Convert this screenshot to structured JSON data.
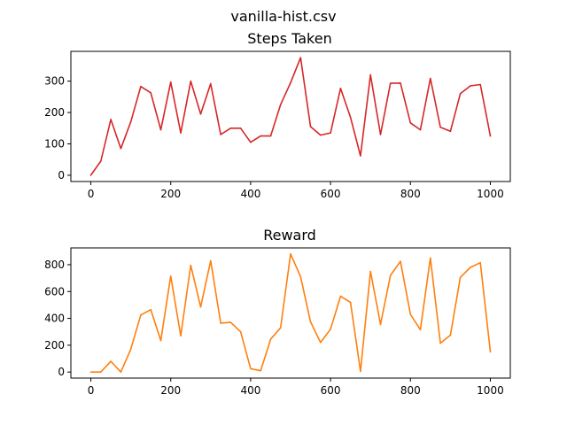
{
  "figure": {
    "suptitle": "vanilla-hist.csv"
  },
  "chart_data": [
    {
      "type": "line",
      "title": "Steps Taken",
      "xlabel": "",
      "ylabel": "",
      "color": "#d62728",
      "xlim": [
        -50,
        1050
      ],
      "ylim": [
        -20,
        395
      ],
      "xticks": [
        0,
        200,
        400,
        600,
        800,
        1000
      ],
      "yticks": [
        0,
        100,
        200,
        300
      ],
      "grid": false,
      "x": [
        0,
        25,
        50,
        75,
        100,
        125,
        150,
        175,
        200,
        225,
        250,
        275,
        300,
        325,
        350,
        375,
        400,
        425,
        450,
        475,
        500,
        525,
        550,
        575,
        600,
        625,
        650,
        675,
        700,
        725,
        750,
        775,
        800,
        825,
        850,
        875,
        900,
        925,
        950,
        975,
        1000
      ],
      "values": [
        0,
        45,
        178,
        85,
        170,
        283,
        263,
        145,
        297,
        135,
        300,
        195,
        292,
        130,
        150,
        150,
        105,
        125,
        125,
        225,
        295,
        375,
        155,
        128,
        135,
        277,
        185,
        62,
        320,
        130,
        293,
        294,
        167,
        145,
        309,
        153,
        140,
        260,
        285,
        289,
        125
      ]
    },
    {
      "type": "line",
      "title": "Reward",
      "xlabel": "",
      "ylabel": "",
      "color": "#ff7f0e",
      "xlim": [
        -50,
        1050
      ],
      "ylim": [
        -45,
        925
      ],
      "xticks": [
        0,
        200,
        400,
        600,
        800,
        1000
      ],
      "yticks": [
        0,
        200,
        400,
        600,
        800
      ],
      "grid": false,
      "x": [
        0,
        25,
        50,
        75,
        100,
        125,
        150,
        175,
        200,
        225,
        250,
        275,
        300,
        325,
        350,
        375,
        400,
        425,
        450,
        475,
        500,
        525,
        550,
        575,
        600,
        625,
        650,
        675,
        700,
        725,
        750,
        775,
        800,
        825,
        850,
        875,
        900,
        925,
        950,
        975,
        1000
      ],
      "values": [
        0,
        0,
        80,
        0,
        170,
        425,
        465,
        235,
        715,
        270,
        795,
        485,
        830,
        365,
        370,
        300,
        25,
        10,
        245,
        330,
        880,
        710,
        375,
        220,
        320,
        565,
        520,
        5,
        750,
        355,
        720,
        825,
        430,
        315,
        850,
        215,
        275,
        705,
        780,
        815,
        150
      ]
    }
  ]
}
